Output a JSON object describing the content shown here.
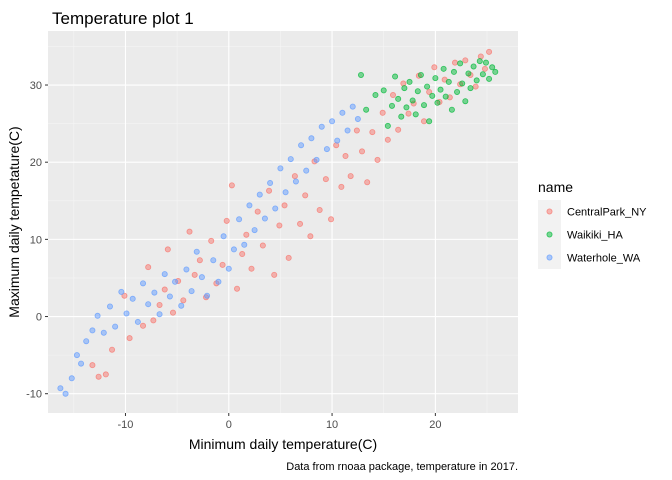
{
  "chart_data": {
    "type": "scatter",
    "title": "Temperature plot 1",
    "xlabel": "Minimum daily temperature(C)",
    "ylabel": "Maximum daily tempetature(C)",
    "caption": "Data from rnoaa package, temperature in 2017.",
    "xlim": [
      -17.5,
      28
    ],
    "ylim": [
      -12.5,
      37
    ],
    "xticks": [
      -10,
      0,
      10,
      20
    ],
    "yticks": [
      -10,
      0,
      10,
      20,
      30
    ],
    "grid": true,
    "legend": {
      "title": "name",
      "position": "right"
    },
    "series": [
      {
        "name": "CentralPark_NY",
        "color": "#F8766D",
        "points": [
          [
            -13.2,
            -6.3
          ],
          [
            -12.6,
            -7.8
          ],
          [
            -11.9,
            -7.5
          ],
          [
            -11.3,
            -4.3
          ],
          [
            -10.1,
            2.7
          ],
          [
            -9.6,
            -2.8
          ],
          [
            -8.3,
            -1.2
          ],
          [
            -7.8,
            6.4
          ],
          [
            -7.3,
            -0.5
          ],
          [
            -6.7,
            1.5
          ],
          [
            -6.2,
            3.5
          ],
          [
            -5.9,
            8.7
          ],
          [
            -5.4,
            0.5
          ],
          [
            -4.9,
            4.6
          ],
          [
            -4.4,
            2.1
          ],
          [
            -3.8,
            11.0
          ],
          [
            -3.3,
            5.4
          ],
          [
            -2.8,
            7.3
          ],
          [
            -2.2,
            2.5
          ],
          [
            -1.7,
            9.8
          ],
          [
            -1.2,
            4.3
          ],
          [
            -0.6,
            6.7
          ],
          [
            -0.2,
            12.4
          ],
          [
            0.3,
            17.0
          ],
          [
            0.8,
            3.6
          ],
          [
            1.3,
            8.1
          ],
          [
            1.7,
            10.6
          ],
          [
            2.2,
            6.2
          ],
          [
            2.8,
            13.6
          ],
          [
            3.3,
            9.2
          ],
          [
            3.9,
            16.3
          ],
          [
            4.4,
            5.4
          ],
          [
            4.9,
            11.8
          ],
          [
            5.4,
            14.4
          ],
          [
            5.8,
            7.6
          ],
          [
            6.4,
            18.2
          ],
          [
            6.9,
            12.0
          ],
          [
            7.4,
            15.7
          ],
          [
            7.9,
            10.4
          ],
          [
            8.3,
            20.1
          ],
          [
            8.8,
            13.8
          ],
          [
            9.4,
            17.8
          ],
          [
            9.9,
            12.6
          ],
          [
            10.4,
            22.2
          ],
          [
            10.9,
            16.8
          ],
          [
            11.3,
            20.8
          ],
          [
            11.8,
            18.2
          ],
          [
            12.4,
            24.1
          ],
          [
            12.9,
            21.4
          ],
          [
            13.4,
            17.4
          ],
          [
            13.9,
            23.9
          ],
          [
            14.4,
            20.3
          ],
          [
            14.9,
            26.4
          ],
          [
            15.4,
            22.9
          ],
          [
            15.9,
            28.7
          ],
          [
            16.4,
            24.2
          ],
          [
            16.9,
            30.2
          ],
          [
            17.4,
            26.3
          ],
          [
            17.9,
            27.6
          ],
          [
            18.4,
            31.2
          ],
          [
            18.9,
            25.3
          ],
          [
            19.4,
            29.1
          ],
          [
            19.9,
            32.3
          ],
          [
            20.4,
            27.8
          ],
          [
            20.9,
            30.7
          ],
          [
            21.4,
            28.4
          ],
          [
            21.9,
            32.9
          ],
          [
            22.4,
            30.1
          ],
          [
            22.9,
            33.2
          ],
          [
            23.4,
            31.3
          ],
          [
            23.9,
            29.8
          ],
          [
            24.4,
            33.7
          ],
          [
            24.8,
            32.1
          ],
          [
            25.2,
            34.3
          ]
        ]
      },
      {
        "name": "Waikiki_HA",
        "color": "#00BA38",
        "points": [
          [
            12.8,
            31.3
          ],
          [
            13.3,
            26.8
          ],
          [
            14.2,
            28.7
          ],
          [
            15.0,
            29.3
          ],
          [
            15.4,
            24.7
          ],
          [
            15.8,
            27.3
          ],
          [
            16.1,
            31.1
          ],
          [
            16.4,
            28.2
          ],
          [
            16.7,
            25.9
          ],
          [
            17.0,
            29.6
          ],
          [
            17.2,
            27.1
          ],
          [
            17.5,
            30.4
          ],
          [
            17.8,
            28.0
          ],
          [
            18.1,
            26.2
          ],
          [
            18.3,
            29.2
          ],
          [
            18.6,
            31.3
          ],
          [
            18.9,
            27.4
          ],
          [
            19.2,
            29.8
          ],
          [
            19.4,
            25.3
          ],
          [
            19.7,
            28.6
          ],
          [
            20.0,
            30.9
          ],
          [
            20.2,
            27.7
          ],
          [
            20.5,
            29.4
          ],
          [
            20.8,
            32.1
          ],
          [
            21.0,
            28.5
          ],
          [
            21.3,
            30.4
          ],
          [
            21.6,
            26.8
          ],
          [
            21.8,
            31.7
          ],
          [
            22.1,
            29.1
          ],
          [
            22.4,
            32.8
          ],
          [
            22.6,
            30.2
          ],
          [
            22.9,
            27.9
          ],
          [
            23.2,
            31.5
          ],
          [
            23.4,
            29.6
          ],
          [
            23.7,
            32.4
          ],
          [
            24.0,
            30.6
          ],
          [
            24.3,
            33.1
          ],
          [
            24.6,
            31.4
          ],
          [
            24.9,
            32.9
          ],
          [
            25.2,
            30.8
          ],
          [
            25.5,
            32.3
          ],
          [
            25.8,
            31.7
          ]
        ]
      },
      {
        "name": "Waterhole_WA",
        "color": "#619CFF",
        "points": [
          [
            -16.3,
            -9.3
          ],
          [
            -15.8,
            -10.0
          ],
          [
            -15.2,
            -8.0
          ],
          [
            -14.7,
            -5.0
          ],
          [
            -14.3,
            -6.1
          ],
          [
            -13.8,
            -3.2
          ],
          [
            -13.2,
            -1.8
          ],
          [
            -12.7,
            0.1
          ],
          [
            -12.1,
            -2.1
          ],
          [
            -11.5,
            1.3
          ],
          [
            -11.0,
            -1.3
          ],
          [
            -10.4,
            3.2
          ],
          [
            -9.9,
            0.4
          ],
          [
            -9.3,
            2.3
          ],
          [
            -8.8,
            -0.7
          ],
          [
            -8.3,
            4.3
          ],
          [
            -7.8,
            1.6
          ],
          [
            -7.2,
            3.1
          ],
          [
            -6.7,
            0.3
          ],
          [
            -6.2,
            5.5
          ],
          [
            -5.7,
            2.6
          ],
          [
            -5.2,
            4.5
          ],
          [
            -4.6,
            1.4
          ],
          [
            -4.1,
            6.1
          ],
          [
            -3.6,
            3.3
          ],
          [
            -3.1,
            8.4
          ],
          [
            -2.6,
            5.1
          ],
          [
            -2.1,
            2.7
          ],
          [
            -1.5,
            7.3
          ],
          [
            -1.0,
            4.5
          ],
          [
            -0.5,
            10.4
          ],
          [
            0.0,
            6.2
          ],
          [
            0.5,
            8.7
          ],
          [
            1.0,
            12.6
          ],
          [
            1.5,
            9.3
          ],
          [
            2.0,
            14.4
          ],
          [
            2.5,
            11.2
          ],
          [
            3.0,
            15.8
          ],
          [
            3.5,
            12.7
          ],
          [
            4.0,
            17.3
          ],
          [
            4.5,
            14.0
          ],
          [
            5.0,
            19.2
          ],
          [
            5.5,
            16.1
          ],
          [
            6.0,
            20.4
          ],
          [
            6.5,
            17.5
          ],
          [
            7.0,
            22.2
          ],
          [
            7.5,
            18.9
          ],
          [
            8.0,
            23.1
          ],
          [
            8.5,
            20.3
          ],
          [
            9.0,
            24.6
          ],
          [
            9.5,
            21.7
          ],
          [
            10.0,
            25.3
          ],
          [
            10.5,
            22.8
          ],
          [
            11.0,
            26.4
          ],
          [
            11.5,
            24.1
          ],
          [
            12.0,
            27.2
          ],
          [
            12.5,
            25.6
          ]
        ]
      }
    ]
  }
}
